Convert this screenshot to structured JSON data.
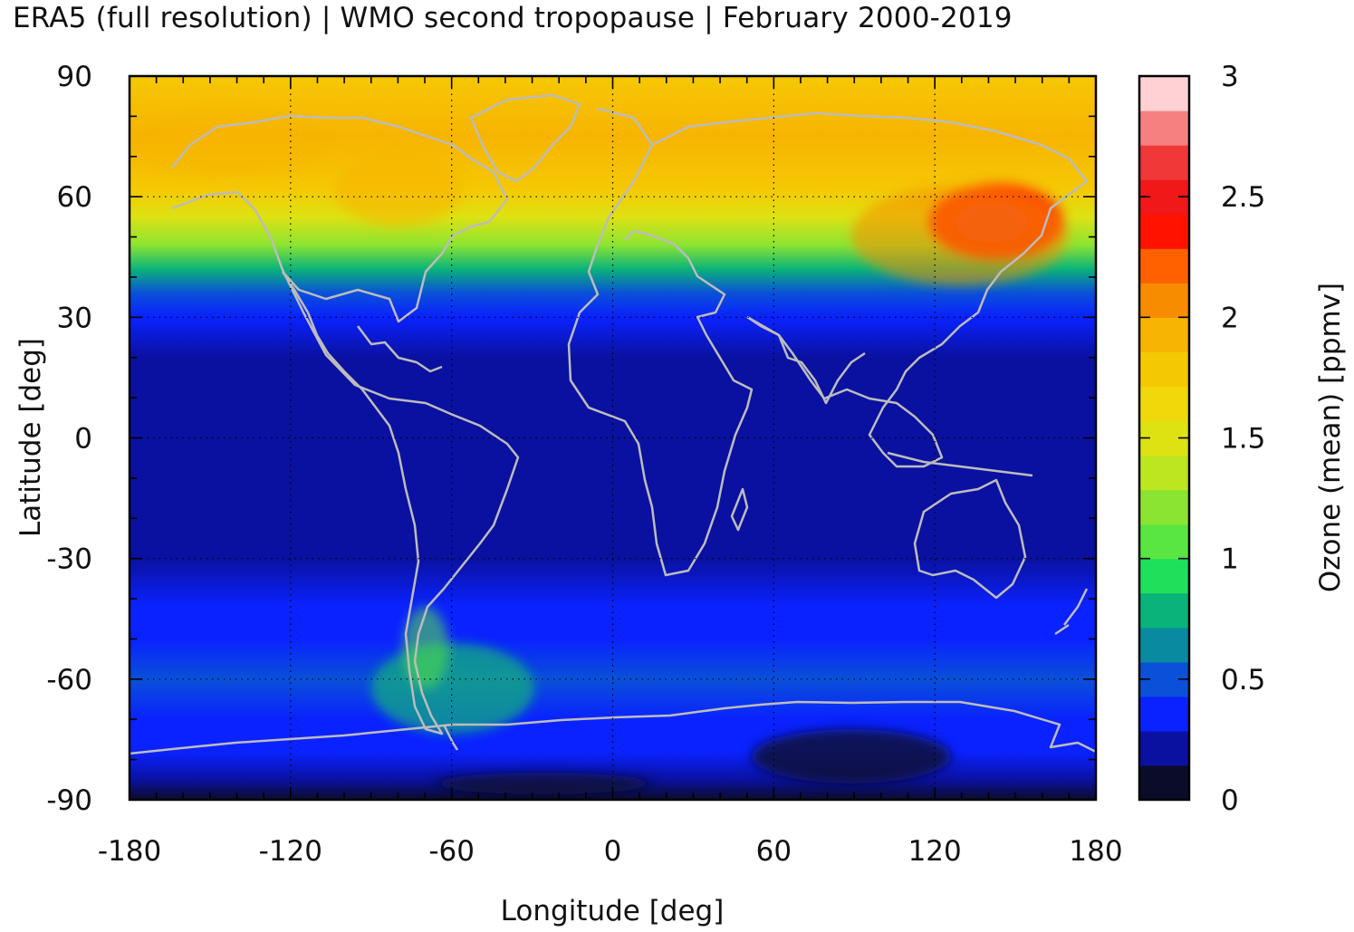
{
  "title": "ERA5 (full resolution) | WMO second tropopause | February 2000-2019",
  "chart_data": {
    "type": "heatmap",
    "title": "ERA5 (full resolution) | WMO second tropopause | February 2000-2019",
    "xlabel": "Longitude [deg]",
    "ylabel": "Latitude [deg]",
    "xlim": [
      -180,
      180
    ],
    "ylim": [
      -90,
      90
    ],
    "xticks": [
      -180,
      -120,
      -60,
      0,
      60,
      120,
      180
    ],
    "yticks": [
      -90,
      -60,
      -30,
      0,
      30,
      60,
      90
    ],
    "grid": true,
    "overlay": "coastlines",
    "colorbar": {
      "label": "Ozone (mean) [ppmv]",
      "range": [
        0,
        3
      ],
      "ticks": [
        0,
        0.5,
        1,
        1.5,
        2,
        2.5,
        3
      ],
      "levels": [
        0,
        0.15,
        0.3,
        0.45,
        0.6,
        0.75,
        0.9,
        1.05,
        1.2,
        1.35,
        1.5,
        1.65,
        1.8,
        1.95,
        2.1,
        2.25,
        2.4,
        2.55,
        2.7,
        2.85,
        3.0
      ],
      "colors": [
        "#0b0c2a",
        "#0a11a0",
        "#0a22ff",
        "#0a50d8",
        "#0a8aa0",
        "#0ab37a",
        "#1ee05a",
        "#5ae642",
        "#8ce432",
        "#bce620",
        "#dee212",
        "#f0d80a",
        "#f5c804",
        "#f7b402",
        "#f88c00",
        "#ff6000",
        "#ff1200",
        "#f01818",
        "#f03838",
        "#f58080",
        "#ffd0d4"
      ]
    },
    "latitude_profile_ppmv": {
      "lat": [
        90,
        75,
        62,
        55,
        48,
        42,
        36,
        30,
        20,
        10,
        0,
        -10,
        -20,
        -30,
        -42,
        -50,
        -60,
        -70,
        -78,
        -85,
        -90
      ],
      "value": [
        1.85,
        1.95,
        1.8,
        1.55,
        1.2,
        0.8,
        0.5,
        0.35,
        0.25,
        0.22,
        0.28,
        0.22,
        0.2,
        0.22,
        0.3,
        0.4,
        0.45,
        0.4,
        0.3,
        0.15,
        0.1
      ]
    },
    "maximum": {
      "region": "north-east Asia",
      "lon": 135,
      "lat": 55,
      "value": 2.6
    }
  }
}
